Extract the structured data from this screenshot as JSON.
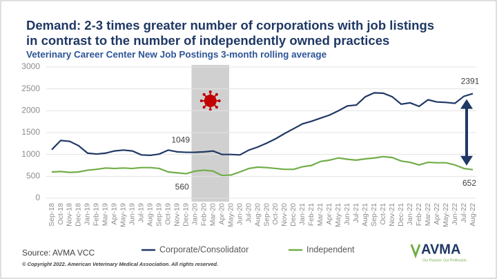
{
  "chart_data": {
    "type": "line",
    "title": "Demand: 2-3 times greater number of corporations with job listings",
    "title_line2": "in contrast to the number of independently owned practices",
    "subtitle": "Veterinary Career Center New Job Postings 3-month rolling average",
    "source": "Source: AVMA VCC",
    "copyright": "© Copyright 2022. American Veterinary Medical Association. All rights reserved.",
    "logo": "AVMA",
    "logo_tagline": "Our Passion. Our Profession.",
    "categories": [
      "Sep-18",
      "Oct-18",
      "Nov-18",
      "Dec-18",
      "Jan-19",
      "Feb-19",
      "Mar-19",
      "Apr-19",
      "May-19",
      "Jun-19",
      "Jul-19",
      "Aug-19",
      "Sep-19",
      "Oct-19",
      "Nov-19",
      "Dec-19",
      "Jan-20",
      "Feb-20",
      "Mar-20",
      "Apr-20",
      "May-20",
      "Jun-20",
      "Jul-20",
      "Aug-20",
      "Sep-20",
      "Oct-20",
      "Nov-20",
      "Dec-20",
      "Jan-21",
      "Feb-21",
      "Mar-21",
      "Apr-21",
      "May-21",
      "Jun-21",
      "Jul-21",
      "Aug-21",
      "Sep-21",
      "Oct-21",
      "Nov-21",
      "Dec-21",
      "Jan-22",
      "Feb-22",
      "Mar-22",
      "Apr-22",
      "May-22",
      "Jun-22",
      "Jul-22",
      "Aug-22"
    ],
    "series": [
      {
        "name": "Corporate/Consolidator",
        "color": "#1f3864",
        "values": [
          1110,
          1320,
          1300,
          1200,
          1030,
          1010,
          1030,
          1080,
          1100,
          1080,
          990,
          980,
          1010,
          1100,
          1060,
          1049,
          1050,
          1060,
          1080,
          1000,
          1000,
          990,
          1100,
          1170,
          1260,
          1360,
          1480,
          1590,
          1700,
          1760,
          1830,
          1900,
          2000,
          2110,
          2130,
          2320,
          2410,
          2400,
          2320,
          2150,
          2180,
          2100,
          2250,
          2200,
          2190,
          2170,
          2330,
          2391
        ]
      },
      {
        "name": "Independent",
        "color": "#70ad47",
        "values": [
          600,
          610,
          590,
          600,
          640,
          660,
          690,
          680,
          690,
          680,
          700,
          700,
          680,
          600,
          580,
          560,
          620,
          640,
          620,
          520,
          530,
          600,
          680,
          710,
          700,
          680,
          660,
          660,
          720,
          750,
          840,
          870,
          920,
          890,
          870,
          900,
          920,
          950,
          930,
          850,
          820,
          760,
          820,
          810,
          810,
          760,
          680,
          652
        ]
      }
    ],
    "ylim": [
      0,
      3000
    ],
    "yticks": [
      0,
      500,
      1000,
      1500,
      2000,
      2500,
      3000
    ],
    "grid": true
  }
}
